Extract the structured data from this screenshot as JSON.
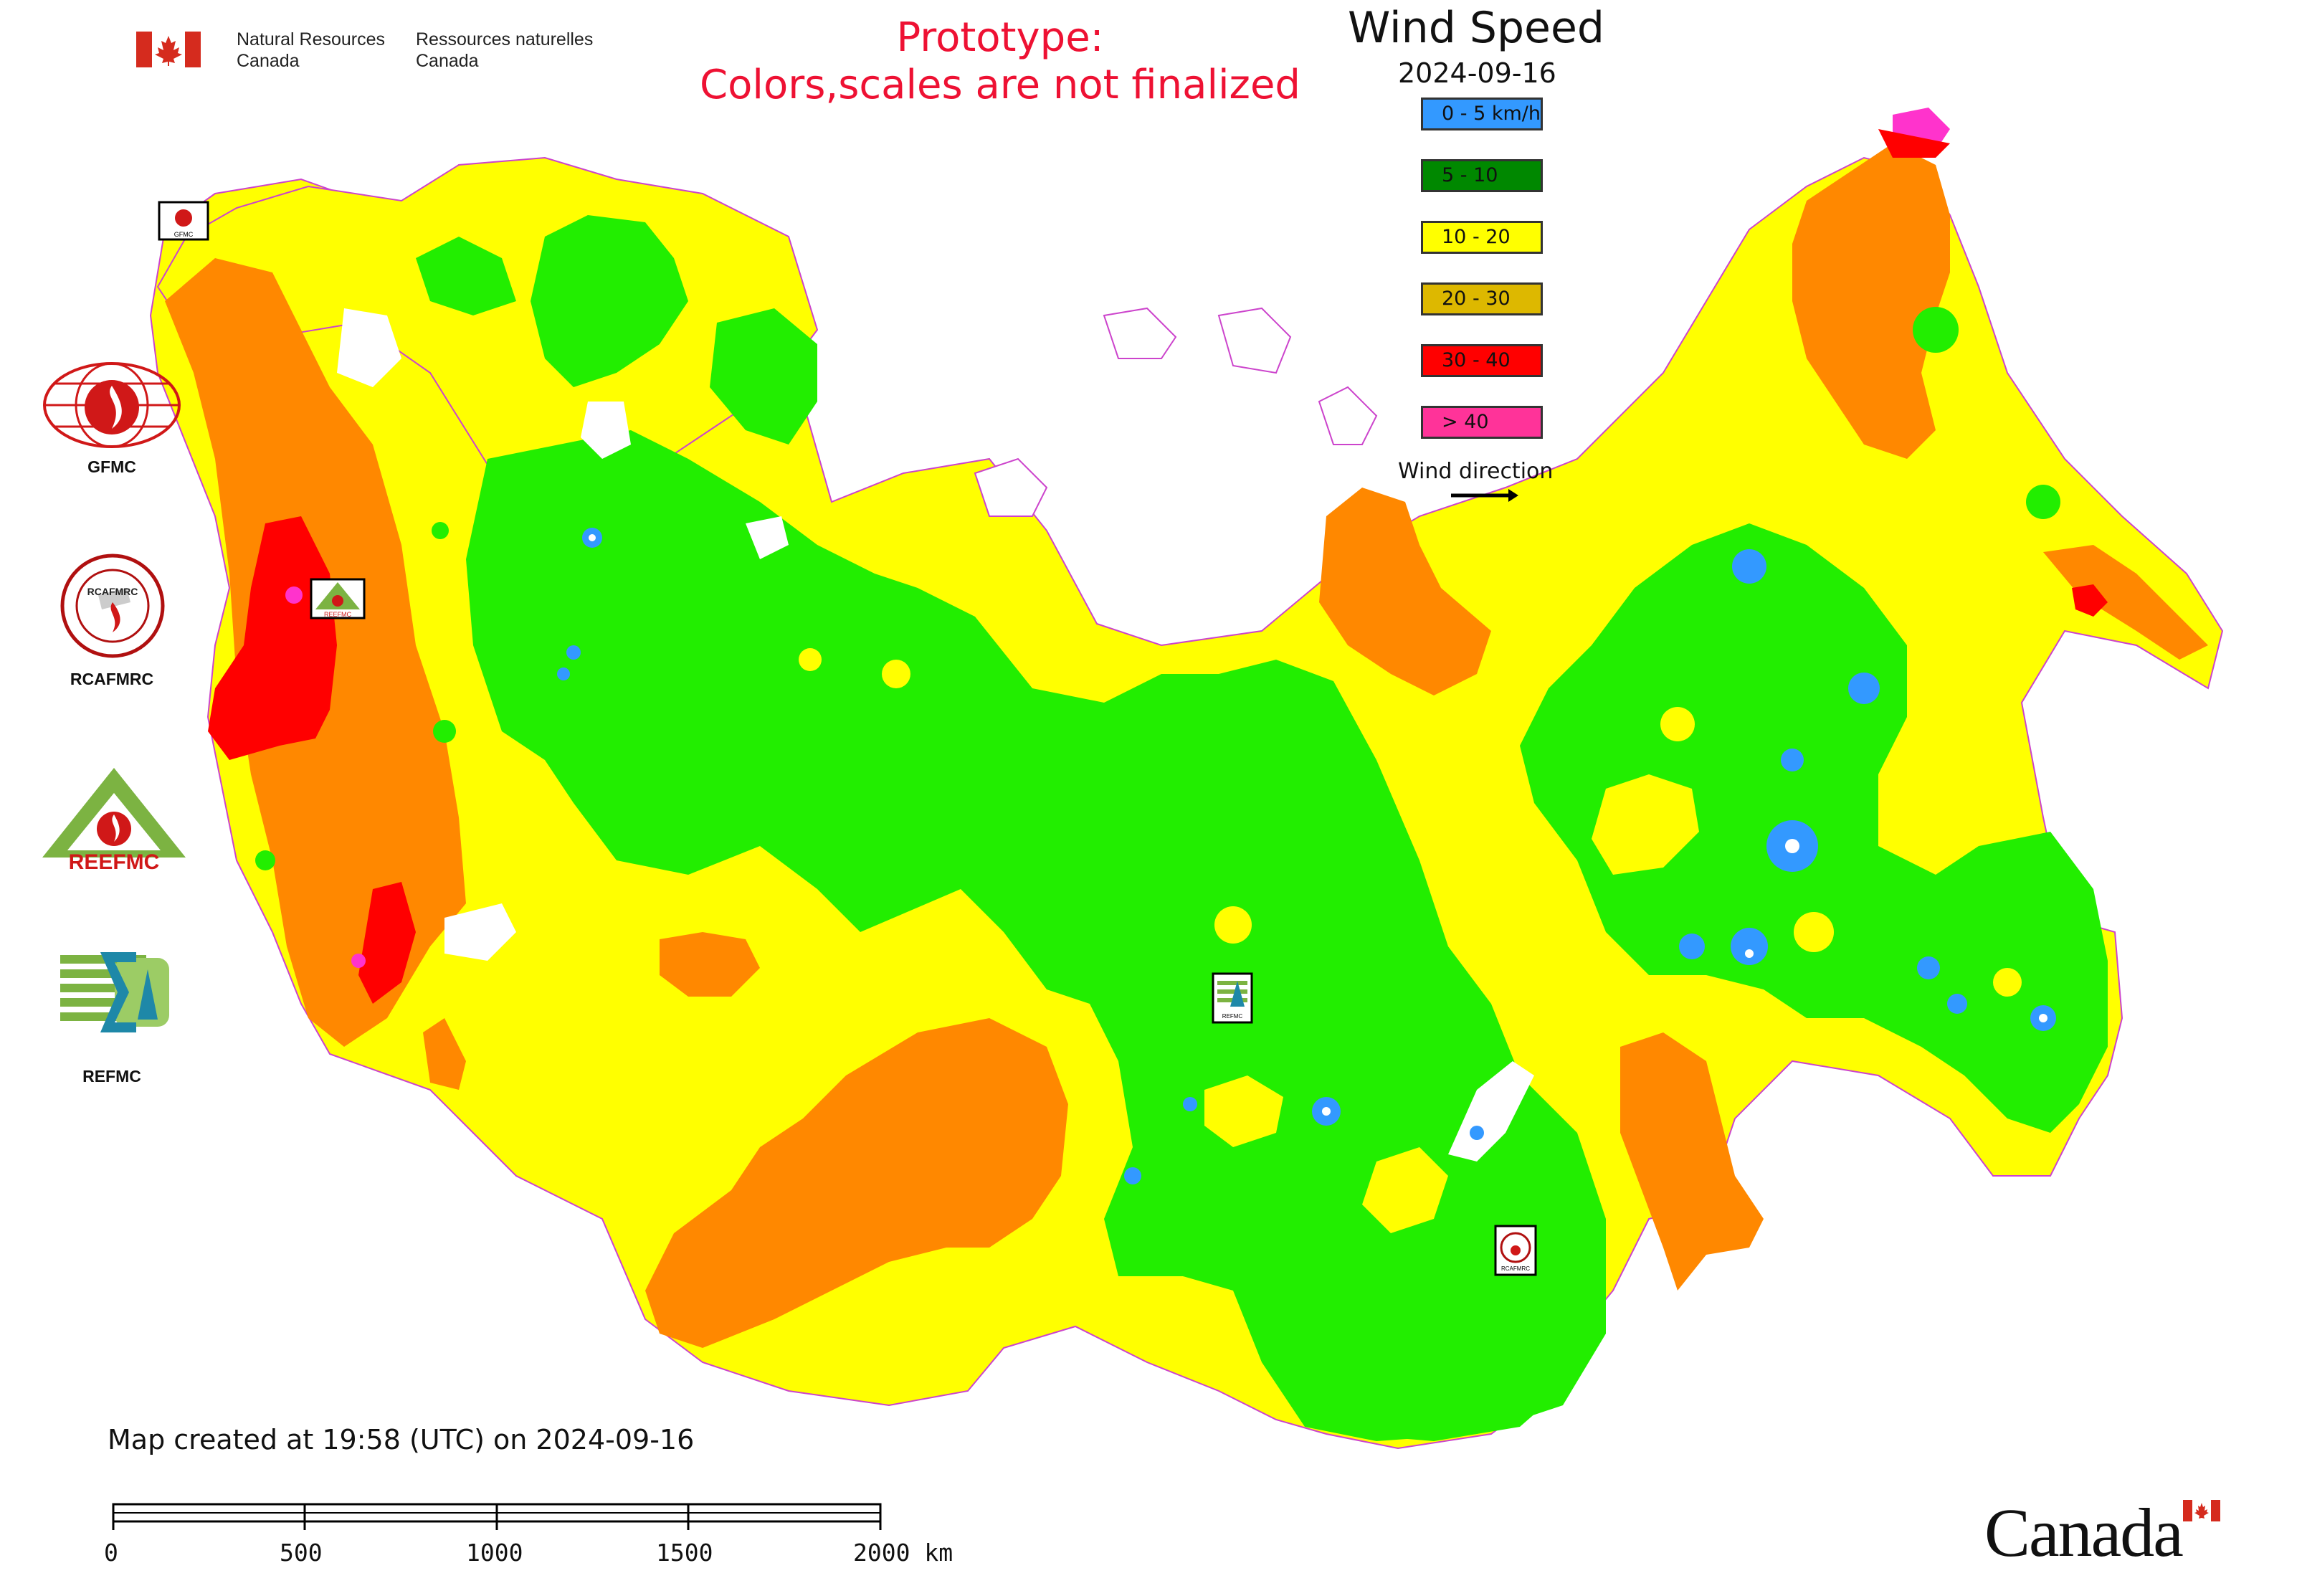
{
  "header": {
    "agency_en_line1": "Natural Resources",
    "agency_en_line2": "Canada",
    "agency_fr_line1": "Ressources naturelles",
    "agency_fr_line2": "Canada",
    "prototype_line1": "Prototype:",
    "prototype_line2": "Colors,scales are not finalized"
  },
  "legend": {
    "title": "Wind Speed",
    "date": "2024-09-16",
    "items": [
      {
        "label": "0 - 5 km/h",
        "color": "#3399ff"
      },
      {
        "label": "5 - 10",
        "color": "#008800"
      },
      {
        "label": "10 - 20",
        "color": "#ffff00"
      },
      {
        "label": "20 - 30",
        "color": "#ddb800"
      },
      {
        "label": "30 - 40",
        "color": "#ff0000"
      },
      {
        "label": "> 40",
        "color": "#ff3399"
      }
    ],
    "wind_direction_label": "Wind direction"
  },
  "logos": [
    {
      "label": "GFMC",
      "icon": "gfmc-fire-globe-icon"
    },
    {
      "label": "RCAFMRC",
      "icon": "rcafmrc-seal-icon",
      "seal_text": "RCAFMRC"
    },
    {
      "label": "",
      "icon": "reefmc-triangle-icon",
      "wordmark": "REEFMC"
    },
    {
      "label": "REFMC",
      "icon": "refmc-sigma-icon"
    }
  ],
  "map_markers": [
    {
      "name": "gfmc-marker",
      "icon": "gfmc-fire-globe-icon",
      "caption": "GFMC"
    },
    {
      "name": "reefmc-marker",
      "icon": "reefmc-triangle-icon",
      "caption": "REEFMC"
    },
    {
      "name": "refmc-marker",
      "icon": "refmc-sigma-icon",
      "caption": "REFMC"
    },
    {
      "name": "rcafmrc-marker",
      "icon": "rcafmrc-seal-icon",
      "caption": "RCAFMRC"
    }
  ],
  "map_colors": {
    "calm": "#3399ff",
    "green": "#22ee00",
    "yellow": "#ffff00",
    "orange": "#ff8800",
    "red": "#ff0000",
    "magenta": "#ff33cc",
    "water": "#ffffff",
    "border": "#cc44cc"
  },
  "footer": {
    "created": "Map created at 19:58 (UTC) on 2024-09-16",
    "scale_labels": [
      "0",
      "500",
      "1000",
      "1500",
      "2000 km"
    ],
    "canada_wordmark": "Canada"
  }
}
